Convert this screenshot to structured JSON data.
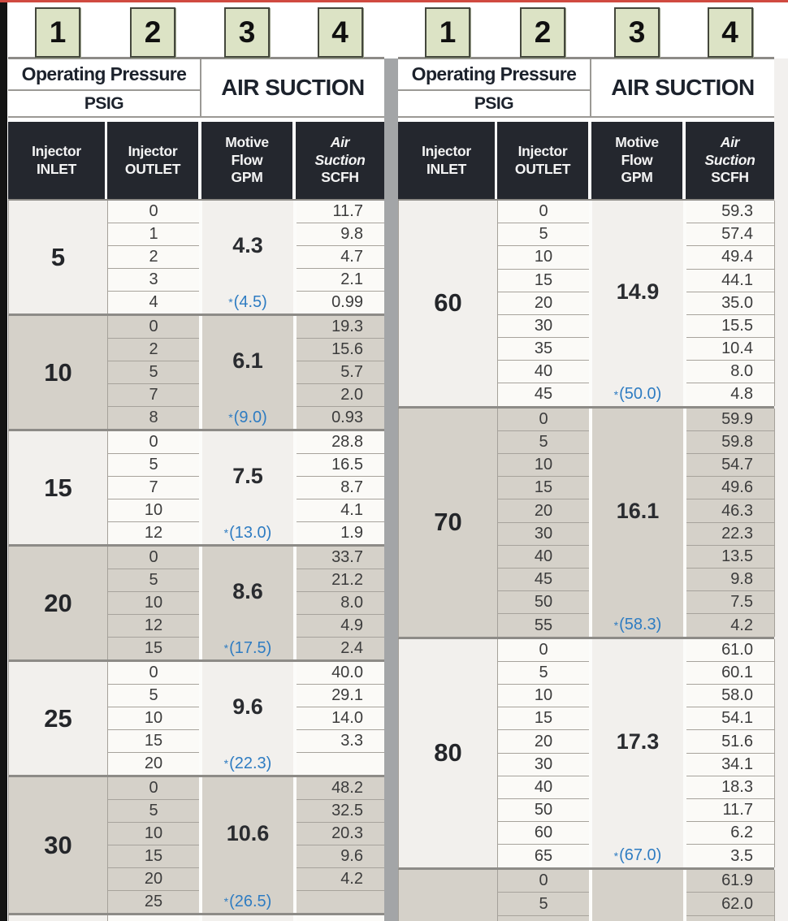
{
  "callouts": {
    "labels": [
      "1",
      "2",
      "3",
      "4"
    ]
  },
  "table_header": {
    "operating_pressure": "Operating Pressure",
    "psig": "PSIG",
    "air_suction": "AIR SUCTION",
    "columns": [
      {
        "lines": [
          "Injector",
          "INLET"
        ],
        "italic_lines": 0
      },
      {
        "lines": [
          "Injector",
          "OUTLET"
        ],
        "italic_lines": 0
      },
      {
        "lines": [
          "Motive",
          "Flow",
          "GPM"
        ],
        "italic_lines": 0
      },
      {
        "lines": [
          "Air",
          "Suction",
          "SCFH"
        ],
        "italic_lines": 2
      }
    ]
  },
  "panels": [
    {
      "groups": [
        {
          "inlet": "5",
          "gpm": "4.3",
          "gpm_star": "(4.5)",
          "shade": "light",
          "rows": [
            [
              "0",
              "11.7"
            ],
            [
              "1",
              "9.8"
            ],
            [
              "2",
              "4.7"
            ],
            [
              "3",
              "2.1"
            ],
            [
              "4",
              "0.99"
            ]
          ]
        },
        {
          "inlet": "10",
          "gpm": "6.1",
          "gpm_star": "(9.0)",
          "shade": "dark",
          "rows": [
            [
              "0",
              "19.3"
            ],
            [
              "2",
              "15.6"
            ],
            [
              "5",
              "5.7"
            ],
            [
              "7",
              "2.0"
            ],
            [
              "8",
              "0.93"
            ]
          ]
        },
        {
          "inlet": "15",
          "gpm": "7.5",
          "gpm_star": "(13.0)",
          "shade": "light",
          "rows": [
            [
              "0",
              "28.8"
            ],
            [
              "5",
              "16.5"
            ],
            [
              "7",
              "8.7"
            ],
            [
              "10",
              "4.1"
            ],
            [
              "12",
              "1.9"
            ]
          ]
        },
        {
          "inlet": "20",
          "gpm": "8.6",
          "gpm_star": "(17.5)",
          "shade": "dark",
          "rows": [
            [
              "0",
              "33.7"
            ],
            [
              "5",
              "21.2"
            ],
            [
              "10",
              "8.0"
            ],
            [
              "12",
              "4.9"
            ],
            [
              "15",
              "2.4"
            ]
          ]
        },
        {
          "inlet": "25",
          "gpm": "9.6",
          "gpm_star": "(22.3)",
          "shade": "light",
          "rows": [
            [
              "0",
              "40.0"
            ],
            [
              "5",
              "29.1"
            ],
            [
              "10",
              "14.0"
            ],
            [
              "15",
              "3.3"
            ],
            [
              "20",
              ""
            ]
          ]
        },
        {
          "inlet": "30",
          "gpm": "10.6",
          "gpm_star": "(26.5)",
          "shade": "dark",
          "rows": [
            [
              "0",
              "48.2"
            ],
            [
              "5",
              "32.5"
            ],
            [
              "10",
              "20.3"
            ],
            [
              "15",
              "9.6"
            ],
            [
              "20",
              "4.2"
            ],
            [
              "25",
              ""
            ]
          ]
        },
        {
          "inlet": "",
          "gpm": "",
          "gpm_star": "",
          "shade": "light",
          "partial": true,
          "rows": [
            [
              "",
              ""
            ]
          ]
        }
      ]
    },
    {
      "groups": [
        {
          "inlet": "60",
          "gpm": "14.9",
          "gpm_star": "(50.0)",
          "shade": "light",
          "rows": [
            [
              "0",
              "59.3"
            ],
            [
              "5",
              "57.4"
            ],
            [
              "10",
              "49.4"
            ],
            [
              "15",
              "44.1"
            ],
            [
              "20",
              "35.0"
            ],
            [
              "30",
              "15.5"
            ],
            [
              "35",
              "10.4"
            ],
            [
              "40",
              "8.0"
            ],
            [
              "45",
              "4.8"
            ]
          ]
        },
        {
          "inlet": "70",
          "gpm": "16.1",
          "gpm_star": "(58.3)",
          "shade": "dark",
          "rows": [
            [
              "0",
              "59.9"
            ],
            [
              "5",
              "59.8"
            ],
            [
              "10",
              "54.7"
            ],
            [
              "15",
              "49.6"
            ],
            [
              "20",
              "46.3"
            ],
            [
              "30",
              "22.3"
            ],
            [
              "40",
              "13.5"
            ],
            [
              "45",
              "9.8"
            ],
            [
              "50",
              "7.5"
            ],
            [
              "55",
              "4.2"
            ]
          ]
        },
        {
          "inlet": "80",
          "gpm": "17.3",
          "gpm_star": "(67.0)",
          "shade": "light",
          "rows": [
            [
              "0",
              "61.0"
            ],
            [
              "5",
              "60.1"
            ],
            [
              "10",
              "58.0"
            ],
            [
              "15",
              "54.1"
            ],
            [
              "20",
              "51.6"
            ],
            [
              "30",
              "34.1"
            ],
            [
              "40",
              "18.3"
            ],
            [
              "50",
              "11.7"
            ],
            [
              "60",
              "6.2"
            ],
            [
              "65",
              "3.5"
            ]
          ]
        },
        {
          "inlet": "",
          "gpm": "",
          "gpm_star": "",
          "shade": "dark",
          "partial": true,
          "rows": [
            [
              "0",
              "61.9"
            ],
            [
              "5",
              "62.0"
            ],
            [
              "",
              ""
            ]
          ]
        }
      ]
    }
  ],
  "colors": {
    "top_line": "#d04a40",
    "left_bar": "#141414",
    "panel_divider": "#a3a5a7",
    "badge_fill": "#dce3c5",
    "header_dark": "#24272e",
    "band_light": "#f2f0ed",
    "band_dark": "#d5d1c9",
    "star_blue": "#2e7cc2"
  }
}
